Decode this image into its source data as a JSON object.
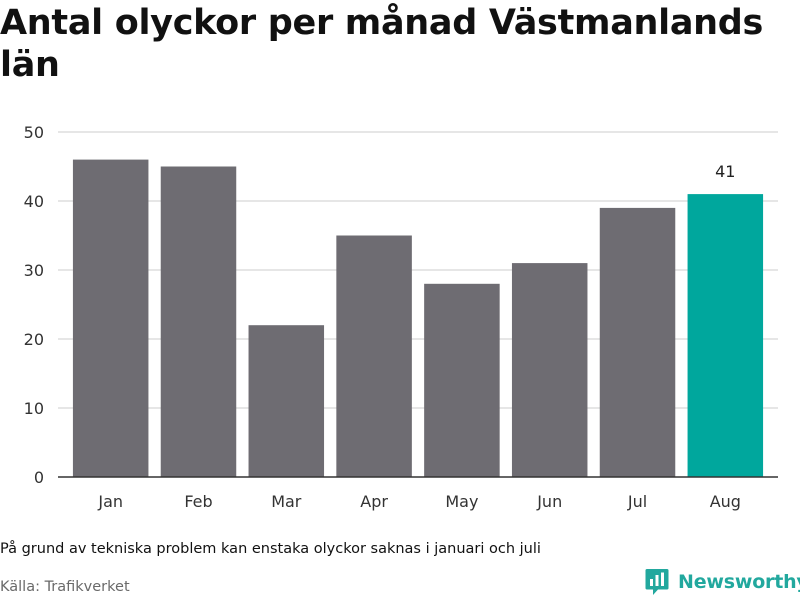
{
  "title": "Antal olyckor per månad Västmanlands län",
  "note": "På grund av tekniska problem kan enstaka olyckor saknas i januari och juli",
  "source": "Källa: Trafikverket",
  "brand": {
    "name": "Newsworthy",
    "icon": "newsworthy-chat-bars-icon",
    "color": "#22a89e"
  },
  "colors": {
    "bar": "#6e6c72",
    "highlight": "#00a79d",
    "grid": "#dddddd",
    "axis": "#333333"
  },
  "chart_data": {
    "type": "bar",
    "categories": [
      "Jan",
      "Feb",
      "Mar",
      "Apr",
      "May",
      "Jun",
      "Jul",
      "Aug"
    ],
    "values": [
      46,
      45,
      22,
      35,
      28,
      31,
      39,
      41
    ],
    "ylim": [
      0,
      50
    ],
    "yticks": [
      0,
      10,
      20,
      30,
      40,
      50
    ],
    "grid": true,
    "highlight_index": 7,
    "data_labels": [
      {
        "index": 7,
        "text": "41"
      }
    ]
  }
}
